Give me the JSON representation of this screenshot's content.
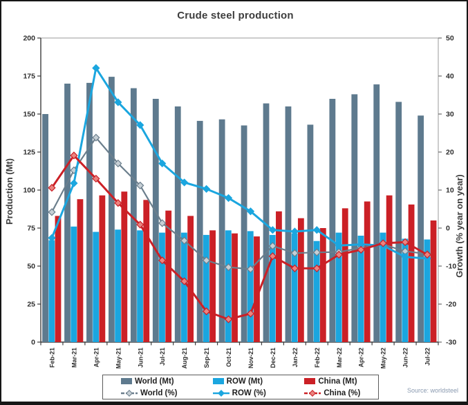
{
  "chart_data": {
    "type": "combo-bar-line",
    "title": "Crude steel production",
    "source": "Source: worldsteel",
    "categories": [
      "Feb-21",
      "Mar-21",
      "Apr-21",
      "May-21",
      "Jun-21",
      "Jul-21",
      "Aug-21",
      "Sep-21",
      "Oct-21",
      "Nov-21",
      "Dec-21",
      "Jan-22",
      "Feb-22",
      "Mar-22",
      "Apr-22",
      "May-22",
      "Jun-22",
      "Jul-22"
    ],
    "left_axis": {
      "label": "Production (Mt)",
      "min": 0,
      "max": 200,
      "step": 25
    },
    "right_axis": {
      "label": "Growth (% year on year)",
      "min": -30,
      "max": 50,
      "step": 10
    },
    "bar_series": [
      {
        "name": "World (Mt)",
        "color": "#5e7a8e",
        "values": [
          150,
          170,
          170.5,
          174.5,
          167,
          160,
          155,
          145.5,
          146.5,
          142.5,
          157,
          155,
          143,
          160,
          163,
          169.5,
          158,
          149
        ]
      },
      {
        "name": "ROW (Mt)",
        "color": "#1ba6df",
        "values": [
          67,
          76,
          72.5,
          74,
          73.5,
          72,
          72,
          70.5,
          73.5,
          73,
          70.5,
          71.5,
          66.5,
          72,
          70,
          72,
          68,
          67.5
        ]
      },
      {
        "name": "China (Mt)",
        "color": "#cb2026",
        "values": [
          83,
          94,
          96.5,
          99,
          93.5,
          86.5,
          83,
          73.5,
          71.5,
          69.5,
          86,
          81.5,
          75,
          88,
          92.5,
          96.5,
          90.5,
          80
        ]
      }
    ],
    "line_series": [
      {
        "name": "World (%)",
        "color": "#6b7e8c",
        "marker_fill": "#c6cfd5",
        "width": 2.2,
        "values": [
          4.2,
          15.2,
          23.8,
          17.0,
          11.2,
          1.3,
          -3.3,
          -8.5,
          -10.3,
          -10.8,
          -4.7,
          -6.6,
          -6.4,
          -6.3,
          -5.2,
          -4.3,
          -6.1,
          -6.8
        ]
      },
      {
        "name": "ROW (%)",
        "color": "#1ba6df",
        "marker_fill": "#1ba6df",
        "width": 3,
        "values": [
          -2.6,
          11.8,
          42.1,
          33.1,
          27.1,
          17.0,
          12.0,
          10.3,
          7.9,
          4.4,
          -0.5,
          -0.9,
          -0.5,
          -4.6,
          -4.3,
          -4.6,
          -7.6,
          -8.0
        ]
      },
      {
        "name": "China (%)",
        "color": "#cb2026",
        "marker_fill": "#ea8480",
        "width": 3,
        "values": [
          10.6,
          19.1,
          13.0,
          6.6,
          0.9,
          -8.5,
          -14.0,
          -21.9,
          -24.0,
          -22.5,
          -7.4,
          -10.6,
          -10.6,
          -7.0,
          -5.7,
          -4.0,
          -3.7,
          -7.0
        ]
      }
    ]
  }
}
